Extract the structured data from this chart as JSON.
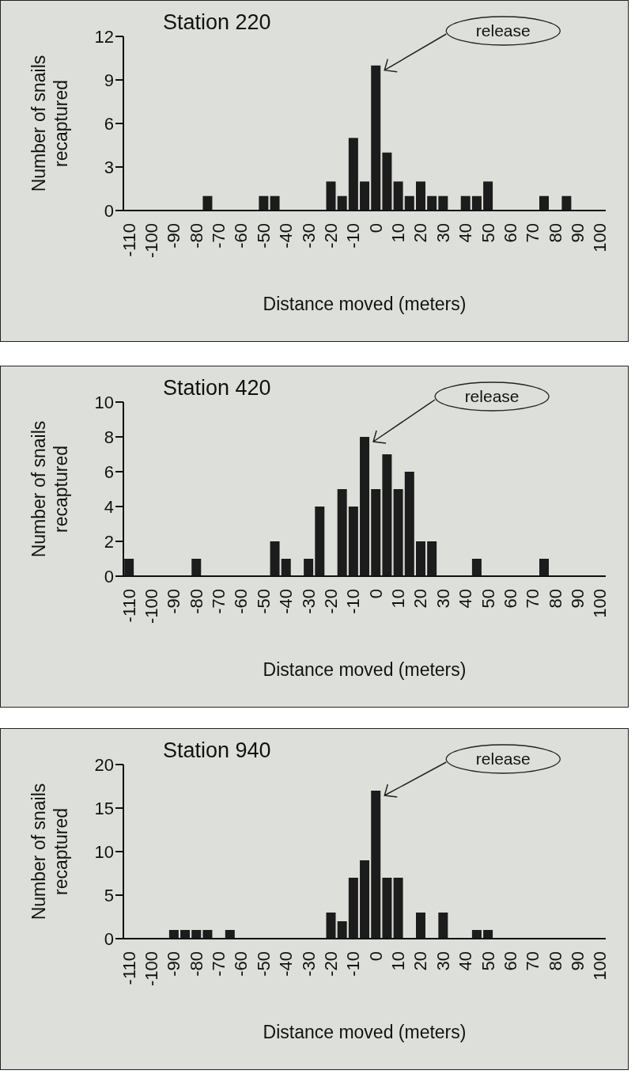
{
  "chart_data": [
    {
      "type": "bar",
      "title": "Station 220",
      "xlabel": "Distance moved (meters)",
      "ylabel": "Number of snails recaptured",
      "annotations": [
        "release"
      ],
      "color": "#1c1c1c",
      "categories": [
        "-110",
        null,
        "-100",
        null,
        "-90",
        null,
        "-80",
        null,
        "-70",
        null,
        "-60",
        null,
        "-50",
        null,
        "-40",
        null,
        "-30",
        null,
        "-20",
        null,
        "-10",
        null,
        "0",
        null,
        "10",
        null,
        "20",
        null,
        "30",
        null,
        "40",
        null,
        "50",
        null,
        "60",
        null,
        "70",
        null,
        "80",
        null,
        "90",
        null,
        "100"
      ],
      "values": [
        0,
        0,
        0,
        0,
        0,
        0,
        0,
        1,
        0,
        0,
        0,
        0,
        1,
        1,
        0,
        0,
        0,
        0,
        2,
        1,
        5,
        2,
        10,
        4,
        2,
        1,
        2,
        1,
        1,
        0,
        1,
        1,
        2,
        0,
        0,
        0,
        0,
        1,
        0,
        1,
        0,
        0,
        0
      ],
      "ylim": [
        0,
        12
      ],
      "yticks": [
        0,
        3,
        6,
        9,
        12
      ]
    },
    {
      "type": "bar",
      "title": "Station 420",
      "xlabel": "Distance moved (meters)",
      "ylabel": "Number of snails recaptured",
      "annotations": [
        "release"
      ],
      "color": "#1c1c1c",
      "categories": [
        "-110",
        null,
        "-100",
        null,
        "-90",
        null,
        "-80",
        null,
        "-70",
        null,
        "-60",
        null,
        "-50",
        null,
        "-40",
        null,
        "-30",
        null,
        "-20",
        null,
        "-10",
        null,
        "0",
        null,
        "10",
        null,
        "20",
        null,
        "30",
        null,
        "40",
        null,
        "50",
        null,
        "60",
        null,
        "70",
        null,
        "80",
        null,
        "90",
        null,
        "100"
      ],
      "values": [
        1,
        0,
        0,
        0,
        0,
        0,
        1,
        0,
        0,
        0,
        0,
        0,
        0,
        2,
        1,
        0,
        1,
        4,
        0,
        5,
        4,
        8,
        5,
        7,
        5,
        6,
        2,
        2,
        0,
        0,
        0,
        1,
        0,
        0,
        0,
        0,
        0,
        1,
        0,
        0,
        0,
        0,
        0
      ],
      "ylim": [
        0,
        10
      ],
      "yticks": [
        0,
        2,
        4,
        6,
        8,
        10
      ]
    },
    {
      "type": "bar",
      "title": "Station 940",
      "xlabel": "Distance moved (meters)",
      "ylabel": "Number of snails recaptured",
      "annotations": [
        "release"
      ],
      "color": "#1c1c1c",
      "categories": [
        "-110",
        null,
        "-100",
        null,
        "-90",
        null,
        "-80",
        null,
        "-70",
        null,
        "-60",
        null,
        "-50",
        null,
        "-40",
        null,
        "-30",
        null,
        "-20",
        null,
        "-10",
        null,
        "0",
        null,
        "10",
        null,
        "20",
        null,
        "30",
        null,
        "40",
        null,
        "50",
        null,
        "60",
        null,
        "70",
        null,
        "80",
        null,
        "90",
        null,
        "100"
      ],
      "values": [
        0,
        0,
        0,
        0,
        1,
        1,
        1,
        1,
        0,
        1,
        0,
        0,
        0,
        0,
        0,
        0,
        0,
        0,
        3,
        2,
        7,
        9,
        17,
        7,
        7,
        0,
        3,
        0,
        3,
        0,
        0,
        1,
        1,
        0,
        0,
        0,
        0,
        0,
        0,
        0,
        0,
        0,
        0
      ],
      "ylim": [
        0,
        20
      ],
      "yticks": [
        0,
        5,
        10,
        15,
        20
      ]
    }
  ]
}
